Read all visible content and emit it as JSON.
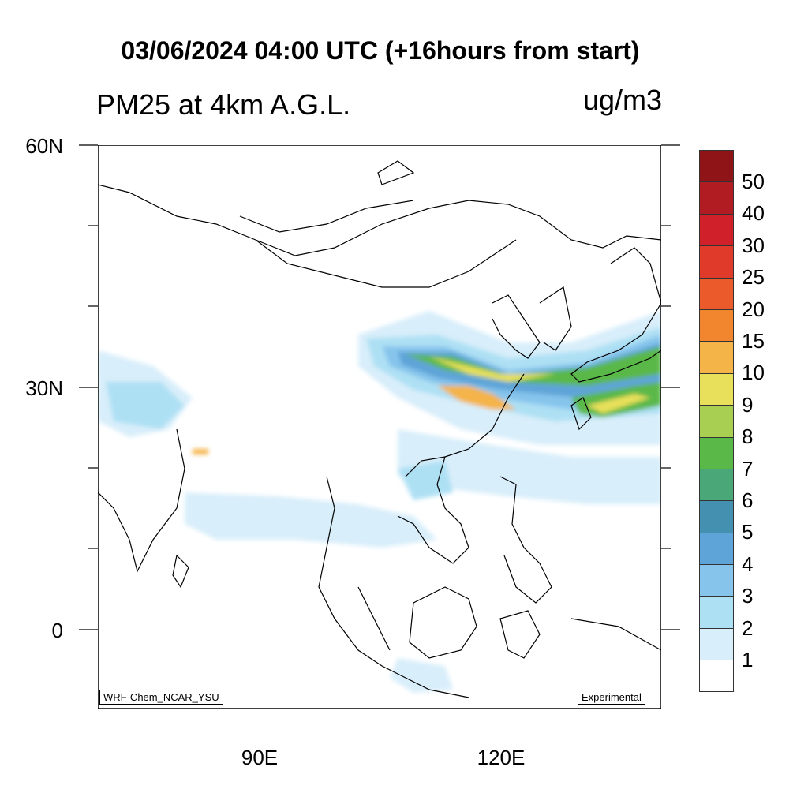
{
  "header": {
    "title": "03/06/2024 04:00 UTC (+16hours from start)",
    "subtitle": "PM25 at 4km A.G.L.",
    "units": "ug/m3"
  },
  "axes": {
    "lat_labels": [
      "60N",
      "30N",
      "0"
    ],
    "lon_labels": [
      "90E",
      "120E"
    ],
    "lat_range": [
      -10,
      60
    ],
    "lon_range": [
      70,
      140
    ]
  },
  "credits": {
    "model": "WRF-Chem_NCAR_YSU",
    "status": "Experimental"
  },
  "colorbar": {
    "labels": [
      "50",
      "40",
      "30",
      "25",
      "20",
      "15",
      "10",
      "9",
      "8",
      "7",
      "6",
      "5",
      "4",
      "3",
      "2",
      "1"
    ],
    "colors": [
      "#8e1418",
      "#b01c22",
      "#d0202a",
      "#e03a2a",
      "#ea5a2a",
      "#f2862e",
      "#f4b448",
      "#e8e05a",
      "#a8ce52",
      "#5ab848",
      "#4aa878",
      "#4490b0",
      "#5ea4d8",
      "#86c4ec",
      "#aee0f4",
      "#d8eefa",
      "#ffffff"
    ]
  },
  "map": {
    "features": [
      {
        "name": "plume-east-china-core",
        "level": 10
      },
      {
        "name": "plume-yangtze",
        "level": 15
      },
      {
        "name": "plume-japan-south",
        "level": 9
      },
      {
        "name": "haze-south-china-sea",
        "level": 2
      },
      {
        "name": "haze-india-hotspot",
        "level": 10
      }
    ]
  }
}
